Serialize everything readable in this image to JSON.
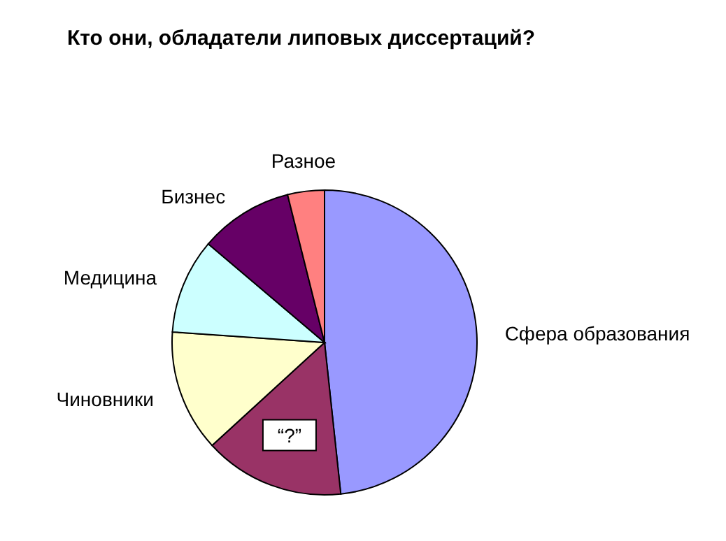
{
  "chart_data": {
    "type": "pie",
    "title": "Кто они, обладатели липовых диссертаций?",
    "categories": [
      "Сфера образования",
      "“?”",
      "Чиновники",
      "Медицина",
      "Бизнес",
      "Разное"
    ],
    "values": [
      48.3,
      14.9,
      12.9,
      10.1,
      9.9,
      3.9
    ],
    "colors": [
      "#9999ff",
      "#993366",
      "#ffffcc",
      "#ccffff",
      "#660066",
      "#ff8080"
    ]
  }
}
